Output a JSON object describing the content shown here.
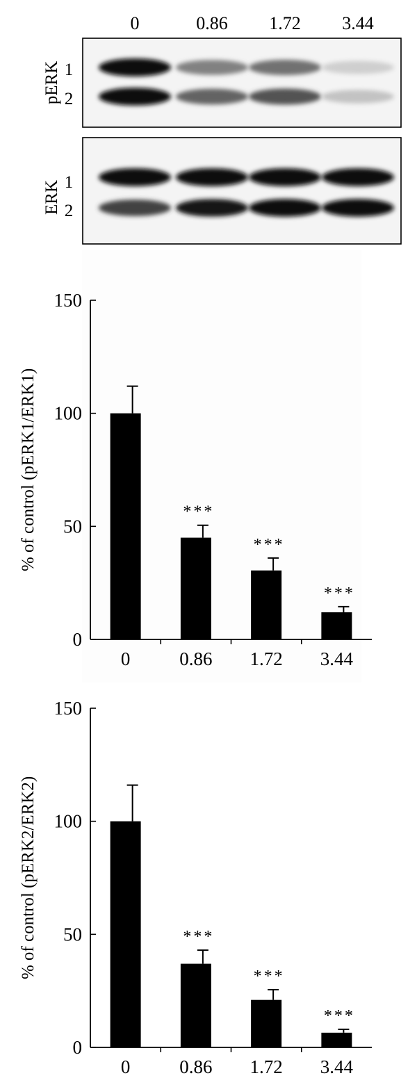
{
  "blot": {
    "lane_labels": [
      "0",
      "0.86",
      "1.72",
      "3.44"
    ],
    "panels": [
      {
        "name": "pERK",
        "band_labels": [
          "1",
          "2"
        ],
        "band_intensity": [
          [
            0.97,
            0.45,
            0.52,
            0.12
          ],
          [
            0.95,
            0.58,
            0.65,
            0.17
          ]
        ]
      },
      {
        "name": "ERK",
        "band_labels": [
          "1",
          "2"
        ],
        "band_intensity": [
          [
            0.97,
            0.97,
            0.97,
            0.97
          ],
          [
            0.72,
            0.92,
            0.94,
            0.94
          ]
        ]
      }
    ]
  },
  "chart_data": [
    {
      "type": "bar",
      "title": "",
      "xlabel": "",
      "ylabel": "% of control (pERK1/ERK1)",
      "categories": [
        "0",
        "0.86",
        "1.72",
        "3.44"
      ],
      "values": [
        100,
        45,
        30.5,
        12
      ],
      "errors": [
        12,
        5.5,
        5.5,
        2.5
      ],
      "annotations": [
        "",
        "***",
        "***",
        "***"
      ],
      "ylim": [
        0,
        150
      ],
      "yticks": [
        0,
        50,
        100,
        150
      ],
      "grid": false,
      "bar_color": "#000000"
    },
    {
      "type": "bar",
      "title": "",
      "xlabel": "",
      "ylabel": "% of control (pERK2/ERK2)",
      "categories": [
        "0",
        "0.86",
        "1.72",
        "3.44"
      ],
      "values": [
        100,
        37,
        21,
        6.5
      ],
      "errors": [
        16,
        6,
        4.5,
        1.5
      ],
      "annotations": [
        "",
        "***",
        "***",
        "***"
      ],
      "ylim": [
        0,
        150
      ],
      "yticks": [
        0,
        50,
        100,
        150
      ],
      "grid": false,
      "bar_color": "#000000"
    }
  ]
}
